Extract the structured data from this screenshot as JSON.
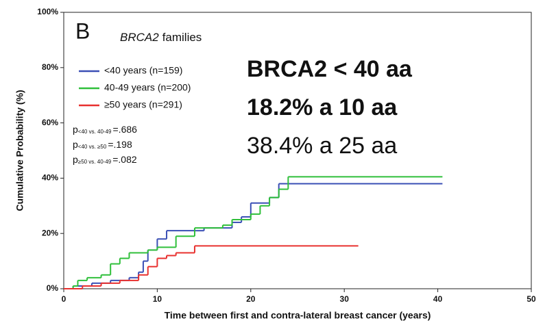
{
  "chart_data": {
    "type": "line",
    "step": true,
    "panel_label": "B",
    "title_gene": "BRCA2",
    "title": "families",
    "xlabel": "Time between first and contra-lateral breast cancer (years)",
    "ylabel": "Cumulative Probability (%)",
    "xlim": [
      0,
      50
    ],
    "xticks": [
      0,
      10,
      20,
      30,
      40,
      50
    ],
    "ylim": [
      0,
      100
    ],
    "yticks": [
      {
        "value": 0,
        "label": "0%"
      },
      {
        "value": 20,
        "label": "20%"
      },
      {
        "value": 40,
        "label": "40%"
      },
      {
        "value": 60,
        "label": "60%"
      },
      {
        "value": 80,
        "label": "80%"
      },
      {
        "value": 100,
        "label": "100%"
      }
    ],
    "series": [
      {
        "name": "<40 years (n=159)",
        "color": "#3a4fb5",
        "x": [
          0,
          1,
          3,
          5,
          7,
          8,
          8.5,
          9,
          10,
          11,
          14,
          15,
          18,
          19,
          20,
          22,
          23,
          40.5
        ],
        "values": [
          0,
          1,
          2,
          3,
          4,
          6,
          10,
          14,
          18,
          21,
          21,
          22,
          24,
          26,
          31,
          33,
          38,
          38
        ]
      },
      {
        "name": "40-49 years (n=200)",
        "color": "#2fbf3a",
        "x": [
          0,
          1,
          1.5,
          2.5,
          4,
          5,
          6,
          7,
          9,
          10,
          12,
          14,
          17,
          18,
          20,
          21,
          22,
          23,
          24,
          40.5
        ],
        "values": [
          0,
          1,
          3,
          4,
          5,
          9,
          11,
          13,
          14,
          15,
          19,
          22,
          23,
          25,
          27,
          30,
          33,
          36,
          40.5,
          40.5
        ]
      },
      {
        "name": "≥50 years (n=291)",
        "color": "#e8302e",
        "x": [
          0,
          2,
          4,
          6,
          8,
          9,
          10,
          11,
          12,
          14,
          31.5
        ],
        "values": [
          0,
          1,
          2,
          3,
          5,
          8,
          11,
          12,
          13,
          15.5,
          15.5
        ]
      }
    ],
    "pvalues": [
      {
        "p": "p",
        "sub": "<40 vs. 40-49",
        "val": "=.686"
      },
      {
        "p": "p",
        "sub": "<40 vs. ≥50",
        "val": "=.198"
      },
      {
        "p": "p",
        "sub": "≥50 vs. 40-49",
        "val": "=.082"
      }
    ],
    "annotations": [
      {
        "text": "BRCA2  < 40 aa",
        "bold": true
      },
      {
        "text": "18.2% a 10 aa",
        "bold": true
      },
      {
        "text": "38.4% a 25 aa",
        "bold": false
      }
    ]
  }
}
